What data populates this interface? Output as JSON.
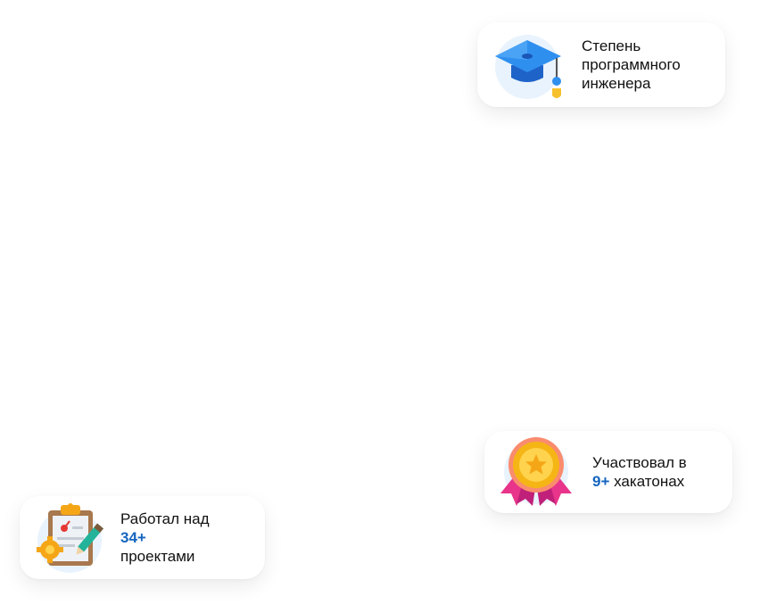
{
  "cards": {
    "degree": {
      "icon": "graduation-cap-icon",
      "line1": "Степень",
      "line2": "программного",
      "line3": "инженера"
    },
    "hackathons": {
      "icon": "medal-icon",
      "line1": "Участвовал в",
      "count": "9+",
      "suffix": " хакатонах"
    },
    "projects": {
      "icon": "clipboard-tasks-icon",
      "line1": "Работал над",
      "count": "34+",
      "line3": "проектами"
    }
  },
  "colors": {
    "accent": "#1565c0",
    "icon_bg": "#e9f3fd",
    "card_bg": "#ffffff"
  }
}
